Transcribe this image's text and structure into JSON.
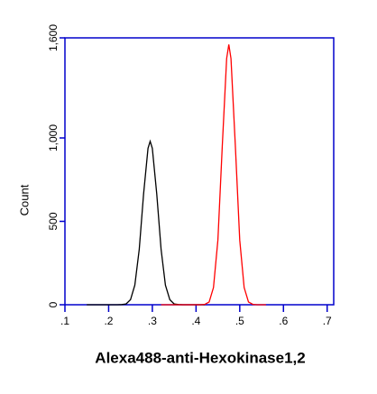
{
  "chart_data": {
    "type": "line",
    "xlabel": "Alexa488-anti-Hexokinase1,2",
    "ylabel": "Count",
    "xlim": [
      1,
      7.15
    ],
    "xticks": [
      {
        "value": 1,
        "label": ".1"
      },
      {
        "value": 2,
        "label": ".2"
      },
      {
        "value": 3,
        "label": ".3"
      },
      {
        "value": 4,
        "label": ".4"
      },
      {
        "value": 5,
        "label": ".5"
      },
      {
        "value": 6,
        "label": ".6"
      },
      {
        "value": 7,
        "label": ".7"
      }
    ],
    "ylim": [
      0,
      1600
    ],
    "yticks": [
      0,
      500,
      {
        "value": 1000,
        "label": "1,000"
      },
      {
        "value": 1600,
        "label": "1,600"
      }
    ],
    "axis_color": "#0000cc",
    "series": [
      {
        "color": "#000000",
        "x": [
          1.5,
          1.8,
          2.1,
          2.2,
          2.3,
          2.4,
          2.5,
          2.6,
          2.7,
          2.8,
          2.9,
          2.95,
          3.0,
          3.1,
          3.2,
          3.3,
          3.4,
          3.5,
          3.6,
          3.7,
          4.0,
          4.2
        ],
        "values": [
          0,
          0,
          0,
          0,
          1,
          5,
          30,
          118,
          333,
          664,
          938,
          980,
          938,
          664,
          333,
          118,
          30,
          5,
          1,
          0,
          0,
          0
        ]
      },
      {
        "color": "#ff0000",
        "x": [
          3.2,
          3.6,
          4.0,
          4.1,
          4.2,
          4.3,
          4.4,
          4.5,
          4.6,
          4.7,
          4.75,
          4.8,
          4.9,
          5.0,
          5.1,
          5.2,
          5.3,
          5.4,
          5.6
        ],
        "values": [
          0,
          0,
          0,
          0,
          2,
          17,
          103,
          388,
          946,
          1476,
          1560,
          1476,
          946,
          388,
          103,
          17,
          2,
          0,
          0
        ]
      }
    ]
  }
}
